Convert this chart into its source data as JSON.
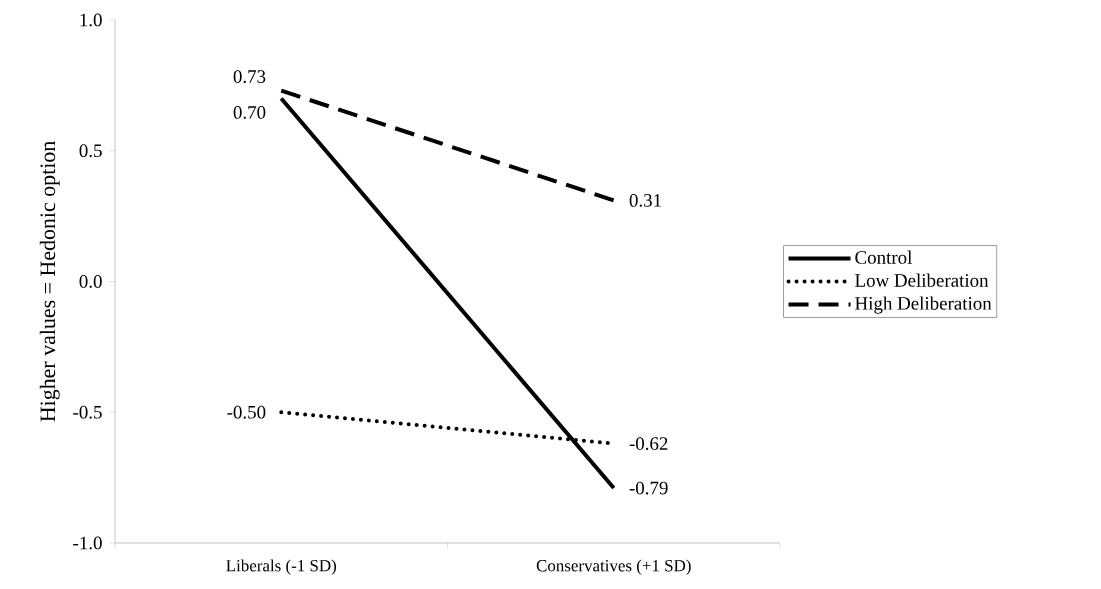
{
  "chart_data": {
    "type": "line",
    "ylabel": "Higher values = Hedonic option",
    "categories": [
      "Liberals (-1 SD)",
      "Conservatives (+1 SD)"
    ],
    "series": [
      {
        "name": "Control",
        "color": "#000000",
        "line_style": "solid",
        "values": [
          0.7,
          -0.79
        ],
        "value_labels": [
          "0.70",
          "-0.79"
        ]
      },
      {
        "name": "Low Deliberation",
        "color": "#000000",
        "line_style": "dotted",
        "values": [
          -0.5,
          -0.62
        ],
        "value_labels": [
          "-0.50",
          "-0.62"
        ]
      },
      {
        "name": "High Deliberation",
        "color": "#000000",
        "line_style": "dashed",
        "values": [
          0.73,
          0.31
        ],
        "value_labels": [
          "0.73",
          "0.31"
        ]
      }
    ],
    "ylim": [
      -1,
      1
    ],
    "yticks": [
      {
        "value": -1,
        "label": "-1.0"
      },
      {
        "value": -0.5,
        "label": "-0.5"
      },
      {
        "value": 0,
        "label": "0.0"
      },
      {
        "value": 0.5,
        "label": "0.5"
      },
      {
        "value": 1,
        "label": "1.0"
      }
    ],
    "grid": false,
    "legend": "right",
    "marker": "none"
  }
}
